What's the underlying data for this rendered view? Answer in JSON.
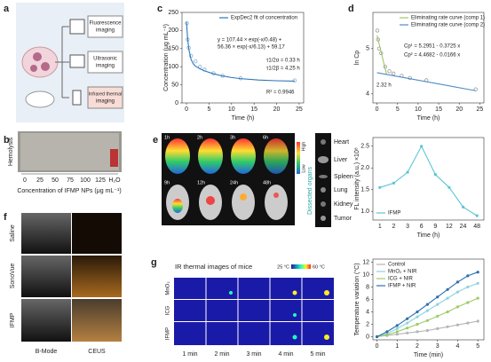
{
  "panels": {
    "a": {
      "label": "a",
      "items": [
        {
          "lines": [
            "Fluorescence",
            "imaging"
          ]
        },
        {
          "lines": [
            "Ultrasonic",
            "imaging"
          ]
        },
        {
          "lines": [
            "Infrared thermal",
            "imaging"
          ]
        }
      ]
    },
    "b": {
      "label": "b",
      "title": "Hemolysis",
      "ticks": [
        "0",
        "25",
        "50",
        "75",
        "100",
        "125",
        "H₂O"
      ],
      "xlabel": "Concentration of IFMP NPs (μg mL⁻¹)"
    },
    "e": {
      "label": "e",
      "times": [
        "1h",
        "2h",
        "3h",
        "6h",
        "9h",
        "12h",
        "24h",
        "48h"
      ],
      "organs": [
        "Heart",
        "Liver",
        "Spleen",
        "Lung",
        "Kidney",
        "Tumor"
      ],
      "organs_label": "Dissected organs",
      "scale_high": "High",
      "scale_low": "Low"
    },
    "f": {
      "label": "f",
      "rows": [
        "Saline",
        "SonoVue",
        "IFMP"
      ],
      "cols": [
        "B-Mode",
        "CEUS"
      ]
    },
    "g": {
      "label": "g",
      "title": "IR thermal images of mice",
      "scale_min": "25 °C",
      "scale_max": "60 °C",
      "rows": [
        "MnO₂",
        "ICG",
        "IFMP"
      ],
      "cols": [
        "1 min",
        "2 min",
        "3 min",
        "4 min",
        "5 min"
      ]
    }
  },
  "chart_data": [
    {
      "type": "line",
      "label": "c",
      "xlabel": "Time (h)",
      "ylabel": "Concentration (μg mL⁻¹)",
      "xlim": [
        -1,
        26
      ],
      "xticks": [
        0,
        5,
        10,
        15,
        20,
        25
      ],
      "ylim": [
        0,
        250
      ],
      "yticks": [
        0,
        50,
        100,
        150,
        200,
        250
      ],
      "legend": "upper right",
      "points": {
        "color": "#7fb0d8",
        "x": [
          0.08,
          0.25,
          0.5,
          1,
          2,
          3,
          4,
          6,
          8,
          12,
          24
        ],
        "values": [
          220,
          175,
          152,
          130,
          115,
          100,
          92,
          82,
          75,
          68,
          62
        ]
      },
      "series": [
        {
          "name": "ExpDec2 fit of concentration",
          "color": "#2f75b5",
          "x": [
            0,
            0.25,
            0.5,
            1,
            1.5,
            2,
            3,
            4,
            6,
            8,
            10,
            12,
            16,
            20,
            24
          ],
          "values": [
            223.0,
            177.1,
            149.1,
            120.4,
            108.0,
            101.4,
            93.9,
            88.6,
            80.4,
            74.5,
            70.2,
            67.1,
            63.3,
            61.3,
            60.3
          ]
        }
      ],
      "annotations": [
        "y = 107.44 × exp(-x/0.48) +",
        "56.36 × exp(-x/6.13) + 59.17",
        "τ1/2α = 0.33 h",
        "τ1/2β = 4.25 h",
        "R² = 0.9946"
      ]
    },
    {
      "type": "line",
      "label": "d",
      "xlabel": "Time (h)",
      "ylabel": "ln Cp",
      "xlim": [
        -1,
        26
      ],
      "xticks": [
        0,
        5,
        10,
        15,
        20,
        25
      ],
      "ylim": [
        3.8,
        5.8
      ],
      "yticks": [
        4,
        5
      ],
      "legend": "upper right",
      "points": {
        "color": "#9a9a9a",
        "x": [
          0.08,
          0.25,
          0.5,
          1,
          2,
          3,
          4,
          6,
          8,
          12,
          24
        ],
        "values": [
          5.4,
          5.2,
          5.0,
          4.9,
          4.6,
          4.5,
          4.45,
          4.4,
          4.35,
          4.3,
          4.1
        ]
      },
      "series": [
        {
          "name": "Eliminating rate curve (comp 1)",
          "color": "#a3c46c",
          "x": [
            0,
            2.32
          ],
          "values": [
            5.2951,
            4.431
          ]
        },
        {
          "name": "Eliminating rate curve (comp 2)",
          "color": "#4f8cc4",
          "x": [
            0,
            24
          ],
          "values": [
            4.4682,
            4.07
          ]
        }
      ],
      "annotations": [
        "Cp¹ = 5.2951 - 0.3725 x",
        "Cp² = 4.4682 - 0.0166 x",
        "2.32 h"
      ]
    },
    {
      "type": "line",
      "xlabel": "Time (h)",
      "ylabel": "FL intensity (a.u.) ×10⁸",
      "categories": [
        "1",
        "2",
        "3",
        "6",
        "9",
        "12",
        "24",
        "48"
      ],
      "ylim": [
        0.8,
        2.7
      ],
      "yticks": [
        {
          "value": 1,
          "label": "1.0"
        },
        1.5,
        {
          "value": 2,
          "label": "2.0"
        },
        2.5
      ],
      "legend": "lower left",
      "series": [
        {
          "name": "IFMP",
          "color": "#5bc5d5",
          "values": [
            1.55,
            1.65,
            1.9,
            2.5,
            1.85,
            1.55,
            1.1,
            0.9
          ],
          "markers": true
        }
      ]
    },
    {
      "type": "line",
      "xlabel": "Time (min)",
      "ylabel": "Temperature variation (°C)",
      "xlim": [
        -0.2,
        5.3
      ],
      "xticks": [
        0,
        1,
        2,
        3,
        4,
        5
      ],
      "ylim": [
        -0.5,
        12.5
      ],
      "yticks": [
        0,
        2,
        4,
        6,
        8,
        10,
        12
      ],
      "legend": "upper left",
      "series": [
        {
          "name": "Control",
          "color": "#b5b5b5",
          "markers": true,
          "x": [
            0,
            0.5,
            1,
            1.5,
            2,
            2.5,
            3,
            3.5,
            4,
            4.5,
            5
          ],
          "values": [
            0,
            0.2,
            0.4,
            0.6,
            0.8,
            1.0,
            1.3,
            1.6,
            1.9,
            2.2,
            2.5
          ]
        },
        {
          "name": "MnO₂ + NIR",
          "color": "#8fd3e0",
          "markers": true,
          "x": [
            0,
            0.5,
            1,
            1.5,
            2,
            2.5,
            3,
            3.5,
            4,
            4.5,
            5
          ],
          "values": [
            0,
            0.5,
            1.3,
            2.2,
            3.2,
            4.2,
            5.2,
            6.2,
            7.2,
            8.0,
            8.6
          ]
        },
        {
          "name": "ICG + NIR",
          "color": "#9ccc65",
          "markers": true,
          "x": [
            0,
            0.5,
            1,
            1.5,
            2,
            2.5,
            3,
            3.5,
            4,
            4.5,
            5
          ],
          "values": [
            0,
            0.3,
            0.8,
            1.4,
            2.0,
            2.6,
            3.3,
            4.0,
            4.8,
            5.5,
            6.2
          ]
        },
        {
          "name": "IFMP + NIR",
          "color": "#2e6fb0",
          "markers": true,
          "x": [
            0,
            0.5,
            1,
            1.5,
            2,
            2.5,
            3,
            3.5,
            4,
            4.5,
            5
          ],
          "values": [
            0,
            0.8,
            1.8,
            2.9,
            4.0,
            5.2,
            6.4,
            7.6,
            8.8,
            9.8,
            10.4
          ]
        }
      ]
    }
  ]
}
